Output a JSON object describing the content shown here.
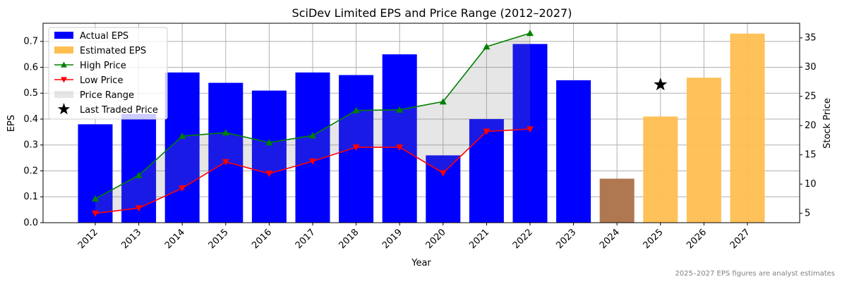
{
  "chart_data": {
    "type": "bar",
    "title": "SciDev Limited EPS and Price Range (2012–2027)",
    "xlabel": "Year",
    "ylabel": "EPS",
    "ylabel_right": "Stock Price",
    "footnote": "2025–2027 EPS figures are analyst estimates",
    "categories": [
      "2012",
      "2013",
      "2014",
      "2015",
      "2016",
      "2017",
      "2018",
      "2019",
      "2020",
      "2021",
      "2022",
      "2023",
      "2024",
      "2025",
      "2026",
      "2027"
    ],
    "ylim": [
      0,
      0.77
    ],
    "y2lim": [
      3.4,
      37.5
    ],
    "y_ticks": [
      "0.0",
      "0.1",
      "0.2",
      "0.3",
      "0.4",
      "0.5",
      "0.6",
      "0.7"
    ],
    "y2_ticks": [
      "5",
      "10",
      "15",
      "20",
      "25",
      "30",
      "35"
    ],
    "grid": true,
    "legend_position": "top-left",
    "series": [
      {
        "name": "Actual EPS",
        "kind": "bar",
        "color": "#0000ff",
        "values": [
          0.38,
          0.42,
          0.58,
          0.54,
          0.51,
          0.58,
          0.57,
          0.65,
          0.26,
          0.4,
          0.69,
          0.55,
          0.17,
          null,
          null,
          null
        ]
      },
      {
        "name": "Estimated EPS",
        "kind": "bar",
        "color": "#ffbe50",
        "values": [
          null,
          null,
          null,
          null,
          null,
          null,
          null,
          null,
          null,
          null,
          null,
          null,
          null,
          0.41,
          0.56,
          0.73
        ]
      },
      {
        "name": "High Price",
        "kind": "line",
        "axis": "right",
        "color": "#008000",
        "marker": "triangle-up",
        "values": [
          7.5,
          11.5,
          18.2,
          18.8,
          17.1,
          18.3,
          22.6,
          22.7,
          24.1,
          33.5,
          35.8,
          null,
          null,
          null,
          null,
          null
        ]
      },
      {
        "name": "Low Price",
        "kind": "line",
        "axis": "right",
        "color": "#ff0000",
        "marker": "triangle-down",
        "values": [
          5.0,
          5.9,
          9.3,
          13.8,
          11.8,
          13.9,
          16.3,
          16.3,
          11.9,
          19.0,
          19.4,
          null,
          null,
          null,
          null,
          null
        ]
      },
      {
        "name": "Price Range",
        "kind": "area",
        "axis": "right",
        "color": "#808080"
      },
      {
        "name": "Last Traded Price",
        "kind": "scatter",
        "axis": "right",
        "color": "#000000",
        "marker": "star",
        "points": [
          {
            "x": "2025",
            "y": 27.0
          }
        ]
      }
    ],
    "highlight": {
      "category": "2024",
      "color": "#b07850"
    }
  }
}
